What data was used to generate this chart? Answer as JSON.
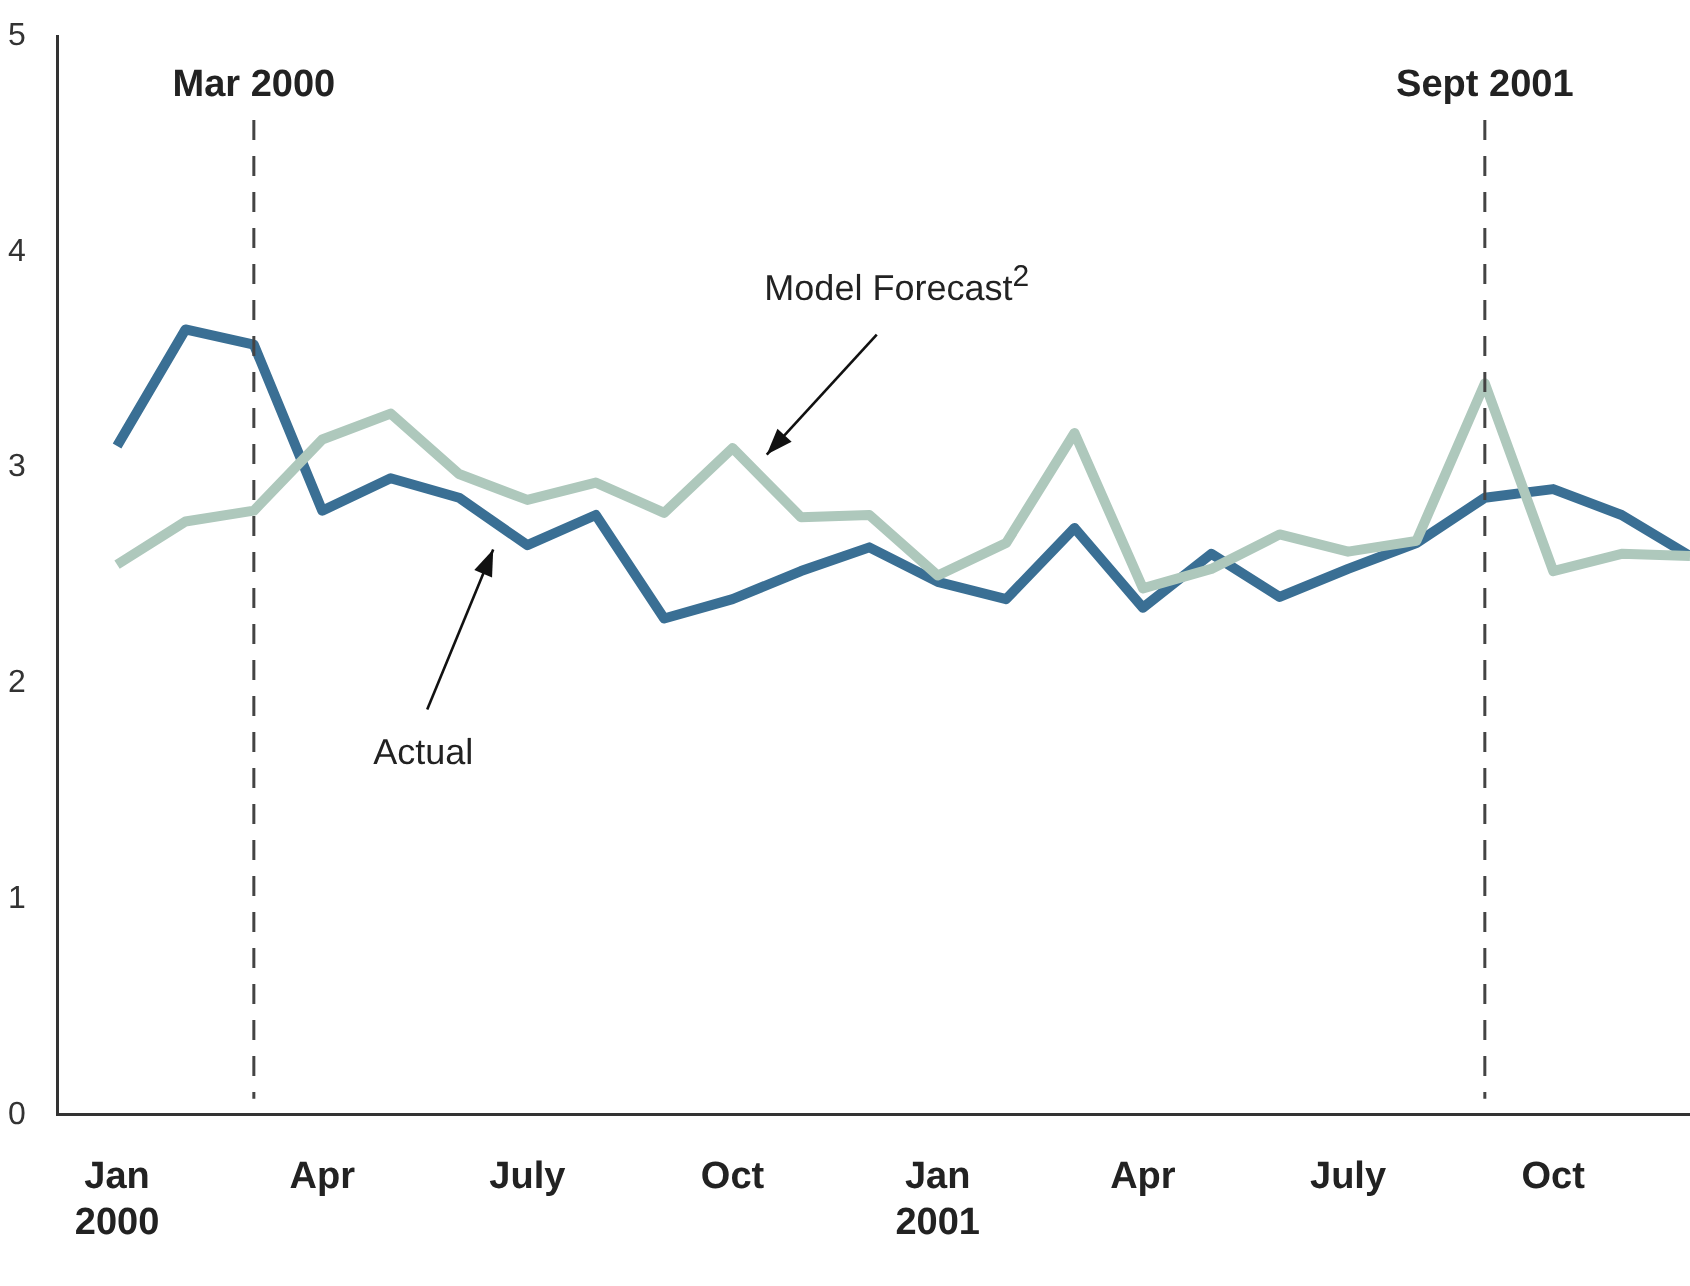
{
  "chart_data": {
    "type": "line",
    "x": [
      "2000-01",
      "2000-02",
      "2000-03",
      "2000-04",
      "2000-05",
      "2000-06",
      "2000-07",
      "2000-08",
      "2000-09",
      "2000-10",
      "2000-11",
      "2000-12",
      "2001-01",
      "2001-02",
      "2001-03",
      "2001-04",
      "2001-05",
      "2001-06",
      "2001-07",
      "2001-08",
      "2001-09",
      "2001-10",
      "2001-11",
      "2001-12"
    ],
    "series": [
      {
        "name": "Model Forecast$^{2}$",
        "color": "#aec8bc",
        "values": [
          2.55,
          2.75,
          2.8,
          3.13,
          3.25,
          2.97,
          2.85,
          2.93,
          2.79,
          3.09,
          2.77,
          2.78,
          2.5,
          2.65,
          3.16,
          2.44,
          2.53,
          2.69,
          2.61,
          2.66,
          3.39,
          2.52,
          2.6,
          2.59
        ]
      },
      {
        "name": "Actual",
        "color": "#3a6f94",
        "values": [
          3.1,
          3.64,
          3.57,
          2.8,
          2.95,
          2.86,
          2.64,
          2.78,
          2.3,
          2.39,
          2.52,
          2.63,
          2.47,
          2.39,
          2.72,
          2.35,
          2.6,
          2.4,
          2.53,
          2.65,
          2.86,
          2.9,
          2.78,
          2.59
        ]
      }
    ],
    "xlim": [
      "1999-12-05",
      "2001-12-01"
    ],
    "xticks": [
      {
        "value": "2000-01",
        "label": "Jan 2000"
      },
      {
        "value": "2000-04",
        "label": "Apr"
      },
      {
        "value": "2000-07",
        "label": "July"
      },
      {
        "value": "2000-10",
        "label": "Oct"
      },
      {
        "value": "2001-01",
        "label": "Jan 2001"
      },
      {
        "value": "2001-04",
        "label": "Apr"
      },
      {
        "value": "2001-07",
        "label": "July"
      },
      {
        "value": "2001-10",
        "label": "Oct"
      }
    ],
    "ylim": [
      0,
      5
    ],
    "yticks": [
      0,
      1,
      2,
      3,
      4,
      5
    ],
    "ref_lines": [
      {
        "axis": "x",
        "value": "2000-03",
        "label": "Mar 2000",
        "color": "#444444",
        "line_style": "dashed"
      },
      {
        "axis": "x",
        "value": "2001-09",
        "label": "Sept 2001",
        "color": "#444444",
        "line_style": "dashed"
      }
    ],
    "grid": false,
    "legend": false,
    "marker": "none",
    "line_style": "solid"
  }
}
